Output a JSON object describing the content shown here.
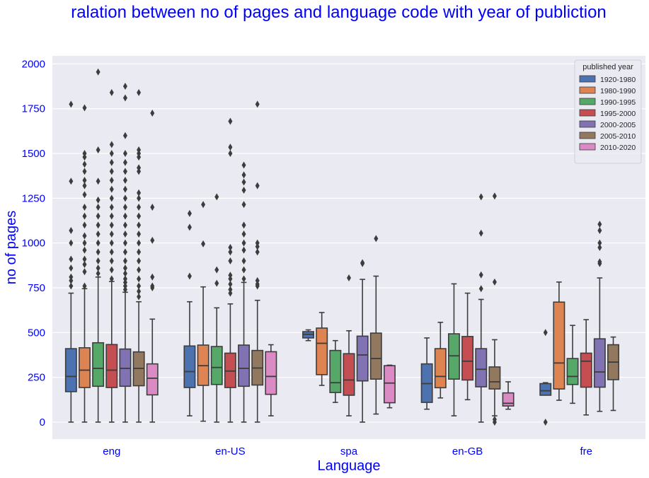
{
  "chart_data": {
    "type": "boxplot",
    "title": "ralation between no of pages and language code with year of publiction",
    "xlabel": "Language",
    "ylabel": "no of pages",
    "categories": [
      "eng",
      "en-US",
      "spa",
      "en-GB",
      "fre"
    ],
    "ylim": [
      -95,
      2045
    ],
    "yticks": [
      0,
      250,
      500,
      750,
      1000,
      1250,
      1500,
      1750,
      2000
    ],
    "grid": true,
    "legend": {
      "title": "published year",
      "placement": "top-right"
    },
    "series": [
      {
        "name": "1920-1980",
        "color": "#4c72b0",
        "boxes": [
          {
            "q1": 170,
            "med": 255,
            "q3": 410,
            "wlo": 0,
            "whi": 720,
            "fliers": [
              760,
              790,
              810,
              860,
              910,
              1000,
              1070,
              1345,
              1775
            ]
          },
          {
            "q1": 193,
            "med": 282,
            "q3": 425,
            "wlo": 35,
            "whi": 672,
            "fliers": [
              815,
              1088,
              1165
            ]
          },
          {
            "q1": 470,
            "med": 490,
            "q3": 505,
            "wlo": 455,
            "whi": 515,
            "fliers": []
          },
          {
            "q1": 110,
            "med": 215,
            "q3": 325,
            "wlo": 72,
            "whi": 470,
            "fliers": []
          },
          {
            "q1": 150,
            "med": 175,
            "q3": 215,
            "wlo": 155,
            "whi": 220,
            "fliers": [
              0,
              500
            ]
          }
        ]
      },
      {
        "name": "1980-1990",
        "color": "#dd8452",
        "boxes": [
          {
            "q1": 193,
            "med": 290,
            "q3": 415,
            "wlo": 0,
            "whi": 745,
            "fliers": [
              760,
              840,
              880,
              910,
              960,
              1000,
              1040,
              1100,
              1150,
              1200,
              1270,
              1320,
              1350,
              1400,
              1440,
              1480,
              1500,
              1755
            ]
          },
          {
            "q1": 205,
            "med": 315,
            "q3": 430,
            "wlo": 5,
            "whi": 755,
            "fliers": [
              995,
              1215
            ]
          },
          {
            "q1": 265,
            "med": 440,
            "q3": 525,
            "wlo": 205,
            "whi": 612,
            "fliers": []
          },
          {
            "q1": 192,
            "med": 255,
            "q3": 410,
            "wlo": 135,
            "whi": 557,
            "fliers": []
          },
          {
            "q1": 185,
            "med": 330,
            "q3": 670,
            "wlo": 122,
            "whi": 782,
            "fliers": []
          }
        ]
      },
      {
        "name": "1990-1995",
        "color": "#55a868",
        "boxes": [
          {
            "q1": 200,
            "med": 300,
            "q3": 443,
            "wlo": 0,
            "whi": 810,
            "fliers": [
              830,
              860,
              900,
              950,
              1000,
              1050,
              1100,
              1150,
              1200,
              1240,
              1345,
              1520,
              1955
            ]
          },
          {
            "q1": 210,
            "med": 305,
            "q3": 422,
            "wlo": 0,
            "whi": 638,
            "fliers": [
              775,
              850,
              1258
            ]
          },
          {
            "q1": 165,
            "med": 220,
            "q3": 400,
            "wlo": 110,
            "whi": 455,
            "fliers": []
          },
          {
            "q1": 240,
            "med": 370,
            "q3": 493,
            "wlo": 35,
            "whi": 772,
            "fliers": []
          },
          {
            "q1": 210,
            "med": 255,
            "q3": 355,
            "wlo": 105,
            "whi": 540,
            "fliers": []
          }
        ]
      },
      {
        "name": "1995-2000",
        "color": "#c44e52",
        "boxes": [
          {
            "q1": 193,
            "med": 290,
            "q3": 433,
            "wlo": 0,
            "whi": 785,
            "fliers": [
              800,
              850,
              900,
              950,
              1000,
              1050,
              1100,
              1150,
              1200,
              1250,
              1300,
              1350,
              1400,
              1450,
              1500,
              1550,
              1840
            ]
          },
          {
            "q1": 193,
            "med": 285,
            "q3": 385,
            "wlo": 0,
            "whi": 660,
            "fliers": [
              720,
              740,
              770,
              800,
              820,
              900,
              950,
              975,
              1500,
              1535,
              1680
            ]
          },
          {
            "q1": 150,
            "med": 235,
            "q3": 382,
            "wlo": 35,
            "whi": 510,
            "fliers": [
              805
            ]
          },
          {
            "q1": 235,
            "med": 340,
            "q3": 478,
            "wlo": 125,
            "whi": 720,
            "fliers": []
          },
          {
            "q1": 195,
            "med": 340,
            "q3": 385,
            "wlo": 40,
            "whi": 572,
            "fliers": []
          }
        ]
      },
      {
        "name": "2000-2005",
        "color": "#8172b3",
        "boxes": [
          {
            "q1": 200,
            "med": 300,
            "q3": 408,
            "wlo": 0,
            "whi": 725,
            "fliers": [
              740,
              760,
              780,
              800,
              830,
              860,
              900,
              950,
              1000,
              1050,
              1100,
              1150,
              1200,
              1250,
              1300,
              1350,
              1400,
              1450,
              1500,
              1600,
              1810,
              1875
            ]
          },
          {
            "q1": 200,
            "med": 300,
            "q3": 430,
            "wlo": 0,
            "whi": 780,
            "fliers": [
              800,
              850,
              900,
              960,
              1000,
              1050,
              1100,
              1215,
              1295,
              1340,
              1380,
              1435
            ]
          },
          {
            "q1": 230,
            "med": 375,
            "q3": 480,
            "wlo": 0,
            "whi": 797,
            "fliers": [
              885,
              890
            ]
          },
          {
            "q1": 197,
            "med": 295,
            "q3": 410,
            "wlo": 0,
            "whi": 685,
            "fliers": [
              745,
              822,
              1055,
              1258
            ]
          },
          {
            "q1": 195,
            "med": 280,
            "q3": 465,
            "wlo": 60,
            "whi": 805,
            "fliers": [
              885,
              895,
              975,
              1000,
              1070,
              1105
            ]
          }
        ]
      },
      {
        "name": "2005-2010",
        "color": "#937860",
        "boxes": [
          {
            "q1": 203,
            "med": 300,
            "q3": 392,
            "wlo": 0,
            "whi": 672,
            "fliers": [
              700,
              730,
              760,
              800,
              850,
              900,
              950,
              1000,
              1050,
              1100,
              1150,
              1200,
              1250,
              1280,
              1400,
              1420,
              1480,
              1500,
              1520,
              1840
            ]
          },
          {
            "q1": 207,
            "med": 302,
            "q3": 400,
            "wlo": 0,
            "whi": 680,
            "fliers": [
              760,
              770,
              790,
              950,
              980,
              1000,
              1320,
              1775
            ]
          },
          {
            "q1": 240,
            "med": 355,
            "q3": 497,
            "wlo": 45,
            "whi": 815,
            "fliers": [
              1025
            ]
          },
          {
            "q1": 185,
            "med": 225,
            "q3": 308,
            "wlo": 35,
            "whi": 460,
            "fliers": [
              0,
              15,
              782,
              1262
            ]
          },
          {
            "q1": 237,
            "med": 335,
            "q3": 432,
            "wlo": 65,
            "whi": 475,
            "fliers": []
          }
        ]
      },
      {
        "name": "2010-2020",
        "color": "#da8bc3",
        "boxes": [
          {
            "q1": 152,
            "med": 245,
            "q3": 325,
            "wlo": 0,
            "whi": 575,
            "fliers": [
              750,
              760,
              810,
              1015,
              1200,
              1725
            ]
          },
          {
            "q1": 155,
            "med": 255,
            "q3": 393,
            "wlo": 35,
            "whi": 432,
            "fliers": []
          },
          {
            "q1": 108,
            "med": 218,
            "q3": 315,
            "wlo": 80,
            "whi": 318,
            "fliers": []
          },
          {
            "q1": 90,
            "med": 105,
            "q3": 163,
            "wlo": 72,
            "whi": 225,
            "fliers": []
          },
          null
        ]
      }
    ]
  }
}
